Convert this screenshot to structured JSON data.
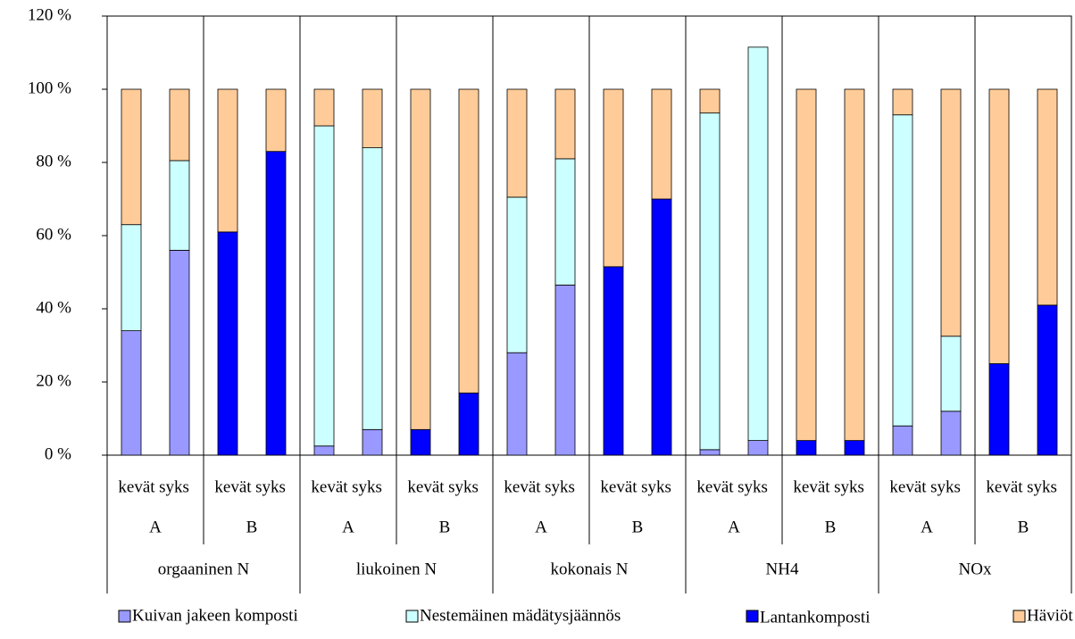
{
  "chart_data": {
    "type": "bar",
    "stacked": true,
    "categories": [
      "kevät",
      "syks",
      "kevät",
      "syks",
      "kevät",
      "syks",
      "kevät",
      "syks",
      "kevät",
      "syks",
      "kevät",
      "syks",
      "kevät",
      "syks",
      "kevät",
      "syks",
      "kevät",
      "syks",
      "kevät",
      "syks"
    ],
    "subgroups": [
      "A",
      "B",
      "A",
      "B",
      "A",
      "B",
      "A",
      "B",
      "A",
      "B"
    ],
    "groups": [
      "orgaaninen N",
      "liukoinen N",
      "kokonais N",
      "NH4",
      "NOx"
    ],
    "series": [
      {
        "name": "Kuivan jakeen komposti",
        "color": "#9999ff",
        "values": [
          34,
          56,
          null,
          null,
          2.5,
          7,
          null,
          null,
          28,
          46.5,
          null,
          null,
          1.5,
          4,
          null,
          null,
          8,
          12,
          null,
          null
        ]
      },
      {
        "name": "Nestemäinen mädätysjäännös",
        "color": "#ccffff",
        "values": [
          29,
          24.5,
          null,
          null,
          87.5,
          77,
          null,
          null,
          42.5,
          34.5,
          null,
          null,
          92,
          107.5,
          null,
          null,
          85,
          20.5,
          null,
          null
        ]
      },
      {
        "name": "Lantankomposti",
        "color": "#0000ff",
        "values": [
          null,
          null,
          61,
          83,
          null,
          null,
          7,
          17,
          null,
          null,
          51.5,
          70,
          null,
          null,
          4,
          4,
          null,
          null,
          25,
          41
        ]
      },
      {
        "name": "Häviöt",
        "color": "#ffcc99",
        "values": [
          37,
          19.5,
          39,
          17,
          10,
          16,
          93,
          83,
          29.5,
          19,
          48.5,
          30,
          6.5,
          null,
          96,
          96,
          7,
          67.5,
          75,
          59
        ]
      }
    ],
    "ylim": [
      0,
      120
    ],
    "yticks": [
      {
        "value": 0,
        "label": "0 %"
      },
      {
        "value": 20,
        "label": "20 %"
      },
      {
        "value": 40,
        "label": "40 %"
      },
      {
        "value": 60,
        "label": "60 %"
      },
      {
        "value": 80,
        "label": "80 %"
      },
      {
        "value": 100,
        "label": "100 %"
      },
      {
        "value": 120,
        "label": "120 %"
      }
    ],
    "grid": false
  }
}
